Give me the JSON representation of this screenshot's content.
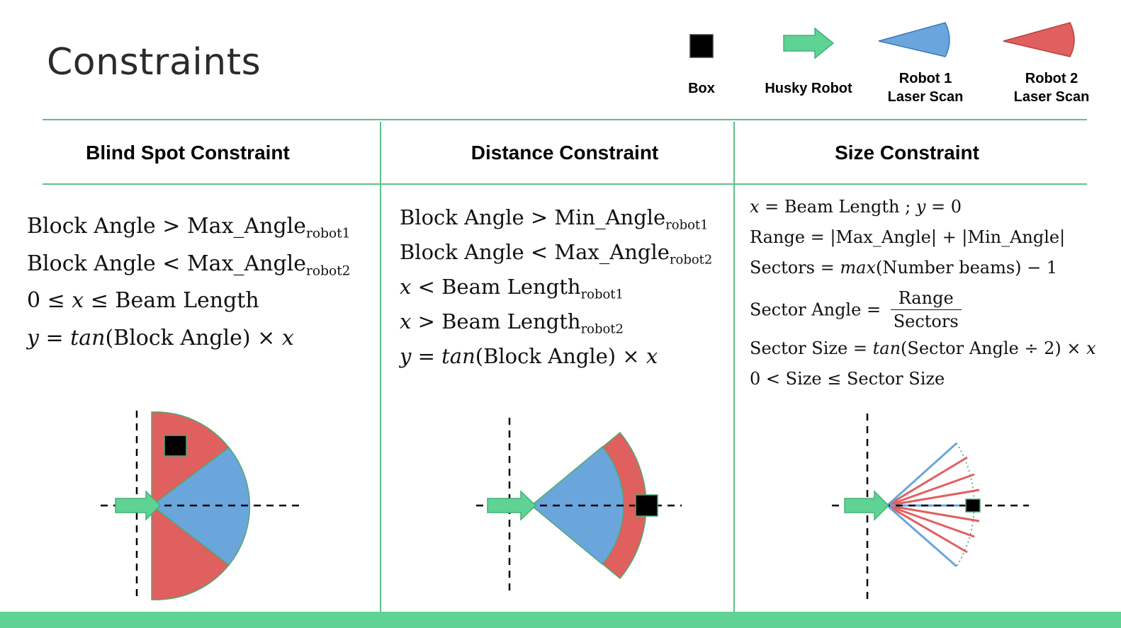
{
  "title": "Constraints",
  "legend": {
    "box": "Box",
    "husky": "Husky Robot",
    "robot1_line1": "Robot 1",
    "robot1_line2": "Laser Scan",
    "robot2_line1": "Robot 2",
    "robot2_line2": "Laser Scan"
  },
  "colors": {
    "accent_line": "#5fbf8a",
    "robot_green": "#5fd394",
    "robot1_blue": "#6aa6dc",
    "robot2_red": "#e0605f",
    "box": "#000000"
  },
  "columns": {
    "blind_spot": {
      "header": "Blind Spot Constraint",
      "eq": [
        {
          "lhs": "Block Angle > Max_Angle",
          "sub": "robot1"
        },
        {
          "lhs": "Block Angle < Max_Angle",
          "sub": "robot2"
        },
        {
          "a": "0 ≤ ",
          "x": "x",
          "b": " ≤ Beam Length"
        },
        {
          "y": "y",
          "a": " = ",
          "tan": "tan",
          "b": "(Block Angle) × ",
          "x": "x"
        }
      ]
    },
    "distance": {
      "header": "Distance Constraint",
      "eq": [
        {
          "lhs": "Block Angle > Min_Angle",
          "sub": "robot1"
        },
        {
          "lhs": "Block Angle < Max_Angle",
          "sub": "robot2"
        },
        {
          "x": "x",
          "rest": " < Beam Length",
          "sub": "robot1"
        },
        {
          "x": "x",
          "rest": " > Beam Length",
          "sub": "robot2"
        },
        {
          "y": "y",
          "a": " = ",
          "tan": "tan",
          "b": "(Block Angle) × ",
          "x": "x"
        }
      ]
    },
    "size": {
      "header": "Size Constraint",
      "eq": [
        {
          "x": "x",
          "a": " = Beam Length ; ",
          "y": "y",
          "b": " = 0"
        },
        {
          "text": "Range = |Max_Angle| + |Min_Angle|"
        },
        {
          "a": "Sectors = ",
          "max": "max",
          "b": "(Number beams) − 1"
        },
        {
          "a": "Sector Angle = ",
          "num": "Range",
          "den": "Sectors"
        },
        {
          "a": "Sector Size = ",
          "tan": "tan",
          "b": "(Sector Angle ÷ 2) × ",
          "x": "x"
        },
        {
          "text": "0 < Size ≤ Sector Size"
        }
      ]
    }
  }
}
